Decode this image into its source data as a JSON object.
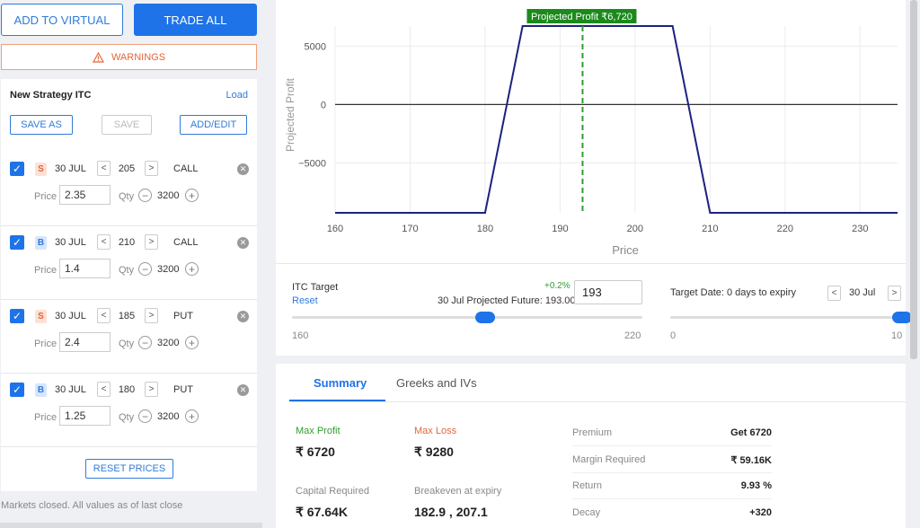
{
  "top_buttons": {
    "add_to_virtual": "ADD TO VIRTUAL",
    "trade_all": "TRADE ALL"
  },
  "warnings": {
    "label": "WARNINGS",
    "icon": "warning-triangle-icon"
  },
  "strategy": {
    "title": "New Strategy ITC",
    "load": "Load",
    "save_as": "SAVE AS",
    "save": "SAVE",
    "add_edit": "ADD/EDIT",
    "price_label": "Price",
    "qty_label": "Qty",
    "legs": [
      {
        "side": "S",
        "expiry": "30 JUL",
        "strike": "205",
        "type": "CALL",
        "price": "2.35",
        "qty": "3200"
      },
      {
        "side": "B",
        "expiry": "30 JUL",
        "strike": "210",
        "type": "CALL",
        "price": "1.4",
        "qty": "3200"
      },
      {
        "side": "S",
        "expiry": "30 JUL",
        "strike": "185",
        "type": "PUT",
        "price": "2.4",
        "qty": "3200"
      },
      {
        "side": "B",
        "expiry": "30 JUL",
        "strike": "180",
        "type": "PUT",
        "price": "1.25",
        "qty": "3200"
      }
    ],
    "reset_prices": "RESET PRICES"
  },
  "markets_note": "Markets closed. All values as of last close",
  "chart_data": {
    "type": "line",
    "xlabel": "Price",
    "ylabel": "Projected Profit",
    "xlim": [
      160,
      235
    ],
    "ylim": [
      -9280,
      6720
    ],
    "xticks": [
      "160",
      "170",
      "180",
      "190",
      "200",
      "210",
      "220",
      "230"
    ],
    "yticks": [
      "5000",
      "0",
      "−5000"
    ],
    "ytick_values": [
      5000,
      0,
      -5000
    ],
    "xtick_values": [
      160,
      170,
      180,
      190,
      200,
      210,
      220,
      230
    ],
    "series": [
      {
        "x": [
          160,
          180,
          185,
          205,
          210,
          235
        ],
        "y": [
          -9280,
          -9280,
          6720,
          6720,
          -9280,
          -9280
        ]
      }
    ],
    "target_line_x": 193,
    "annotation": "Projected Profit ₹6,720",
    "grid": true,
    "colors": {
      "line": "#1a237e",
      "target": "#2e9e2e",
      "annotation_bg": "#1b8a1b"
    }
  },
  "target": {
    "label": "ITC Target",
    "reset": "Reset",
    "change": "+0.2%",
    "projected_future": "30 Jul Projected Future: 193.00",
    "value": "193",
    "range_min": "160",
    "range_max": "220",
    "slider_fraction": 0.55,
    "date_label": "Target Date: 0 days to expiry",
    "date_value": "30 Jul",
    "date_min": "0",
    "date_max": "10",
    "date_slider_fraction": 1.0
  },
  "summary": {
    "tabs": [
      "Summary",
      "Greeks and IVs"
    ],
    "max_profit_label": "Max Profit",
    "max_profit": "₹ 6720",
    "max_loss_label": "Max Loss",
    "max_loss": "₹ 9280",
    "capital_label": "Capital Required",
    "capital": "₹ 67.64K",
    "breakeven_label": "Breakeven at expiry",
    "breakeven": "182.9 , 207.1",
    "right": [
      {
        "label": "Premium",
        "value": "Get 6720"
      },
      {
        "label": "Margin Required",
        "value": "₹ 59.16K"
      },
      {
        "label": "Return",
        "value": "9.93 %"
      },
      {
        "label": "Decay",
        "value": "+320"
      }
    ]
  }
}
